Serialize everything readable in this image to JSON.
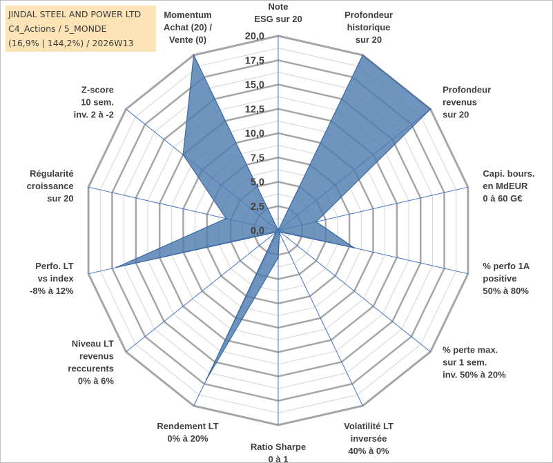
{
  "title_box": {
    "line1": "JINDAL STEEL AND POWER LTD",
    "line2": "C4_Actions / 5_MONDE",
    "line3": "(16,9% | 144,2%) / 2026W13"
  },
  "colors": {
    "series_fill": "#4f7cb0",
    "series_stroke": "#3b6aa3",
    "grid_outer": "#a6a6a6",
    "grid_inner": "#d4d4d4",
    "spoke": "#4472c4"
  },
  "chart_data": {
    "type": "radar",
    "title": "",
    "rmin": 0,
    "rmax": 20,
    "tick_step": 2.5,
    "tick_labels": [
      "0,0",
      "2,5",
      "5,0",
      "7,5",
      "10,0",
      "12,5",
      "15,0",
      "17,5",
      "20,0"
    ],
    "axes": [
      {
        "label_lines": [
          "Note",
          "ESG sur 20"
        ],
        "value": 0.0
      },
      {
        "label_lines": [
          "Profondeur",
          "historique",
          "sur 20"
        ],
        "value": 20.0
      },
      {
        "label_lines": [
          "Profondeur",
          "revenus",
          "sur 20"
        ],
        "value": 20.0
      },
      {
        "label_lines": [
          "Capi. bours.",
          "en MdEUR",
          "0 à 60 G€"
        ],
        "value": 4.0
      },
      {
        "label_lines": [
          "% perfo 1A",
          "positive",
          "50% à 80%"
        ],
        "value": 8.0
      },
      {
        "label_lines": [
          "% perte max.",
          "sur 1 sem.",
          "inv. 50% à 20%"
        ],
        "value": 0.3
      },
      {
        "label_lines": [
          "Volatilité LT",
          "inversée",
          "40% à 0%"
        ],
        "value": 0.3
      },
      {
        "label_lines": [
          "Ratio Sharpe",
          "0 à 1"
        ],
        "value": 2.8
      },
      {
        "label_lines": [
          "Rendement LT",
          "0% à 20%"
        ],
        "value": 17.0
      },
      {
        "label_lines": [
          "Niveau LT",
          "revenus",
          "reccurents",
          "0% à 6%"
        ],
        "value": 0.3
      },
      {
        "label_lines": [
          "Perfo. LT",
          "vs index",
          "-8% à 12%"
        ],
        "value": 17.0
      },
      {
        "label_lines": [
          "Régularité",
          "croissance",
          "sur 20"
        ],
        "value": 5.5
      },
      {
        "label_lines": [
          "Z-score",
          "10 sem.",
          "inv. 2 à -2"
        ],
        "value": 12.5
      },
      {
        "label_lines": [
          "Momentum",
          "Achat (20) /",
          "Vente (0)"
        ],
        "value": 20.0
      }
    ]
  }
}
